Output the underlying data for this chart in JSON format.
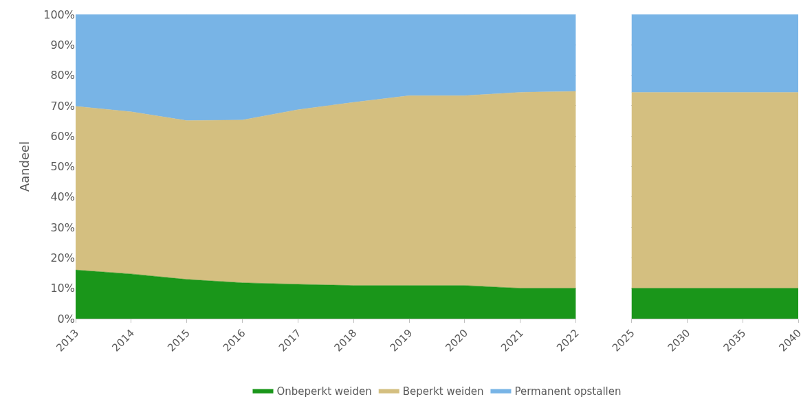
{
  "chart_data": [
    {
      "type": "area",
      "stacked": true,
      "ylabel": "Aandeel",
      "categories": [
        "2013",
        "2014",
        "2015",
        "2016",
        "2017",
        "2018",
        "2019",
        "2020",
        "2021",
        "2022"
      ],
      "series": [
        {
          "name": "Onbeperkt weiden",
          "color": "#1a961a",
          "values": [
            16,
            14.7,
            12.9,
            11.8,
            11.3,
            10.9,
            10.9,
            10.9,
            10,
            10
          ]
        },
        {
          "name": "Beperkt weiden",
          "color": "#d4bf80",
          "values": [
            53.8,
            53.3,
            52.2,
            53.5,
            57.4,
            60.2,
            62.4,
            62.4,
            64.4,
            64.7
          ]
        },
        {
          "name": "Permanent opstallen",
          "color": "#78b4e6",
          "values": [
            30.2,
            32,
            34.9,
            34.7,
            31.3,
            28.9,
            26.7,
            26.7,
            25.6,
            25.3
          ]
        }
      ],
      "ylim": [
        0,
        100
      ],
      "yticks": [
        {
          "value": 0,
          "label": "0%"
        },
        {
          "value": 10,
          "label": "10%"
        },
        {
          "value": 20,
          "label": "20%"
        },
        {
          "value": 30,
          "label": "30%"
        },
        {
          "value": 40,
          "label": "40%"
        },
        {
          "value": 50,
          "label": "50%"
        },
        {
          "value": 60,
          "label": "60%"
        },
        {
          "value": 70,
          "label": "70%"
        },
        {
          "value": 80,
          "label": "80%"
        },
        {
          "value": 90,
          "label": "90%"
        },
        {
          "value": 100,
          "label": "100%"
        }
      ],
      "grid": "y",
      "legend": "bottom"
    },
    {
      "type": "area",
      "stacked": true,
      "categories": [
        "2025",
        "2030",
        "2035",
        "2040"
      ],
      "series": [
        {
          "color": "#1a961a",
          "values": [
            10,
            10,
            10,
            10
          ]
        },
        {
          "color": "#d4bf80",
          "values": [
            64.4,
            64.4,
            64.4,
            64.4
          ]
        },
        {
          "color": "#78b4e6",
          "values": [
            25.6,
            25.6,
            25.6,
            25.6
          ]
        }
      ],
      "ylim": [
        0,
        100
      ],
      "yticks": [
        {
          "value": 0,
          "label": null
        },
        {
          "value": 10,
          "label": null
        },
        {
          "value": 20,
          "label": null
        },
        {
          "value": 30,
          "label": null
        },
        {
          "value": 40,
          "label": null
        },
        {
          "value": 50,
          "label": null
        },
        {
          "value": 60,
          "label": null
        },
        {
          "value": 70,
          "label": null
        },
        {
          "value": 80,
          "label": null
        },
        {
          "value": 90,
          "label": null
        },
        {
          "value": 100,
          "label": null
        }
      ],
      "grid": "y",
      "tick_labels": "x"
    }
  ]
}
